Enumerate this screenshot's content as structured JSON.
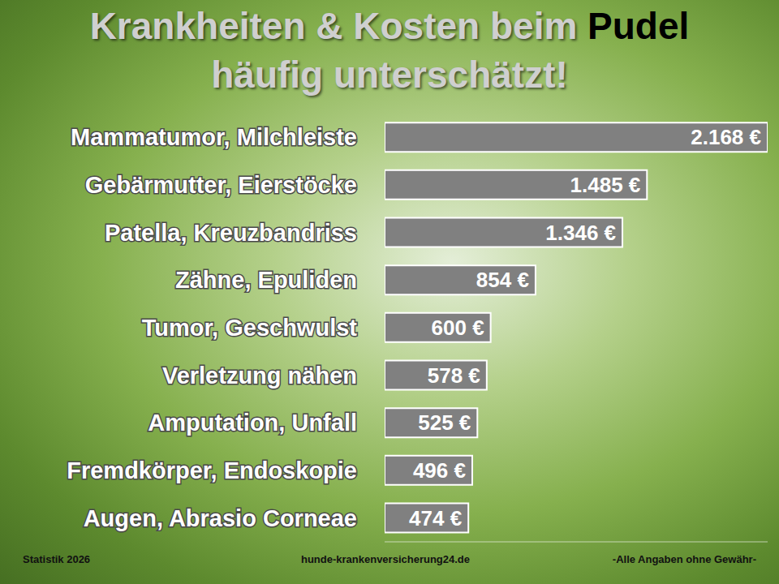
{
  "chart_data": {
    "type": "bar",
    "orientation": "horizontal",
    "title": "Krankheiten & Kosten beim Pudel",
    "subtitle": "häufig unterschätzt!",
    "categories": [
      "Mammatumor, Milchleiste",
      "Gebärmutter, Eierstöcke",
      "Patella, Kreuzbandriss",
      "Zähne, Epuliden",
      "Tumor, Geschwulst",
      "Verletzung nähen",
      "Amputation, Unfall",
      "Fremdkörper, Endoskopie",
      "Augen, Abrasio Corneae"
    ],
    "values": [
      2168,
      1485,
      1346,
      854,
      600,
      578,
      525,
      496,
      474
    ],
    "value_labels": [
      "2.168 €",
      "1.485 €",
      "1.346 €",
      "854 €",
      "600 €",
      "578 €",
      "525 €",
      "496 €",
      "474 €"
    ],
    "color": "#808080",
    "xlim": [
      0,
      2168
    ],
    "xticks": [],
    "data_labels": true,
    "tick_labels": "y",
    "grid": false,
    "annotations": [
      "Statistik 2026",
      "hunde-krankenversicherung24.de",
      "-Alle Angaben ohne Gewähr-"
    ]
  }
}
